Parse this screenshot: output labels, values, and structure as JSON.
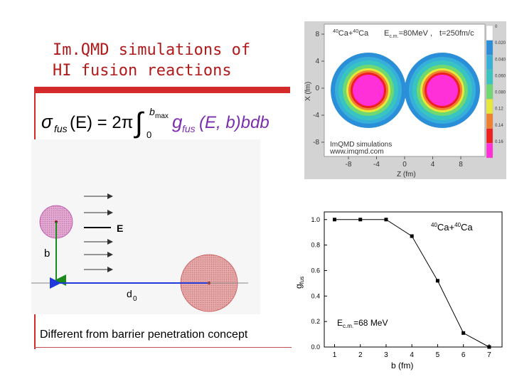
{
  "slide": {
    "title_line1": "Im.QMD simulations of",
    "title_line2": "HI fusion reactions",
    "caption": "Different from barrier penetration concept"
  },
  "formula": {
    "lhs": "σ",
    "lhs_sub": "fus",
    "lhs_arg": "(E) = 2π",
    "upper_limit": "b",
    "upper_limit_sub": "max",
    "lower_limit": "0",
    "integrand": "g",
    "integrand_sub": "fus",
    "integrand_arg": "(E, b)bdb"
  },
  "sketch": {
    "energy_label": "E",
    "impact_label": "b",
    "distance_label": "d",
    "distance_sub": "0"
  },
  "density_plot": {
    "reaction_mass1": "40",
    "reaction_el1": "Ca+",
    "reaction_mass2": "40",
    "reaction_el2": "Ca",
    "energy_text": "E",
    "energy_sub": "c.m.",
    "energy_value": "=80MeV ,",
    "time_text": "t=250fm/c",
    "simulation_line1": "ImQMD simulations",
    "simulation_line2": "www.imqmd.com",
    "xlabel": "Z (fm)",
    "ylabel": "X (fm)",
    "x_ticks": [
      "-8",
      "-4",
      "0",
      "4",
      "8"
    ],
    "y_ticks": [
      "8",
      "4",
      "0",
      "-4",
      "-8"
    ],
    "colorbar_ticks": [
      "0",
      "0.020",
      "0.040",
      "0.060",
      "0.080",
      "0.12",
      "0.14",
      "0.16"
    ],
    "colors": [
      "#ffffff",
      "#2a8fd8",
      "#36b0d8",
      "#38c4c0",
      "#70d870",
      "#e8e838",
      "#f08030",
      "#ee2020",
      "#ff30d8"
    ]
  },
  "chart_data": {
    "type": "line",
    "x": [
      1,
      2,
      3,
      4,
      5,
      6,
      7
    ],
    "values": [
      1.0,
      1.0,
      1.0,
      0.87,
      0.52,
      0.11,
      0.0
    ],
    "xlabel": "b (fm)",
    "ylabel": "g_fus",
    "ylabel_main": "g",
    "ylabel_sub": "fus",
    "x_ticks": [
      "1",
      "2",
      "3",
      "4",
      "5",
      "6",
      "7"
    ],
    "y_ticks": [
      "0.0",
      "0.2",
      "0.4",
      "0.6",
      "0.8",
      "1.0"
    ],
    "xlim": [
      0.6,
      7.5
    ],
    "ylim": [
      0.0,
      1.06
    ],
    "legend_mass1": "40",
    "legend_el1": "Ca+",
    "legend_mass2": "40",
    "legend_el2": "Ca",
    "energy_text": "E",
    "energy_sub": "c.m.",
    "energy_value": "=68 MeV"
  }
}
